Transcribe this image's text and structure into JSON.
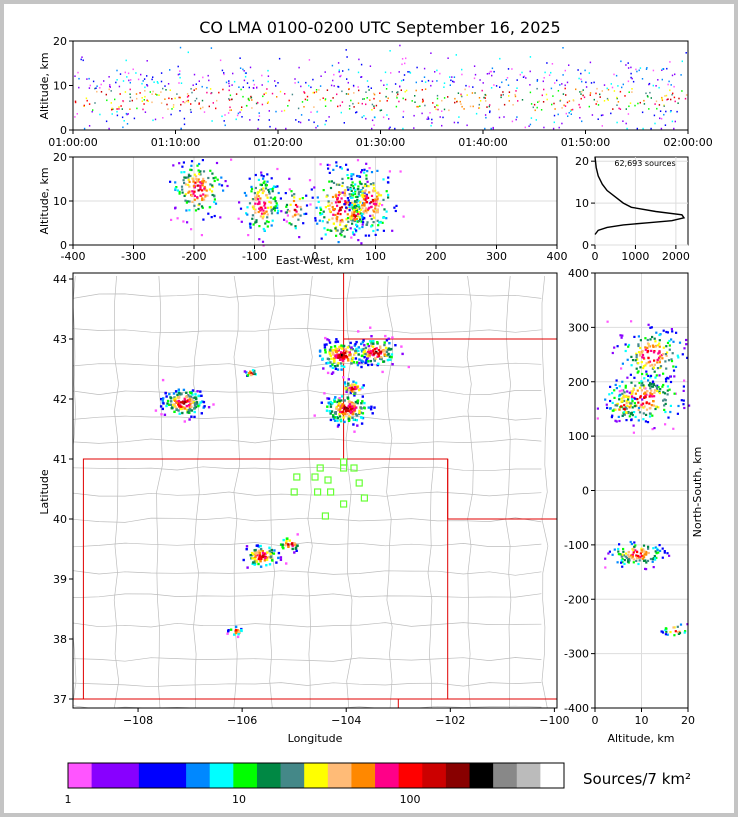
{
  "title": "CO LMA 0100-0200 UTC September 16, 2025",
  "colors": {
    "state_border": "#e00000",
    "county_border": "#bdbdbd",
    "station_marker": "#66ff33",
    "axis": "#000000",
    "grid": "#dddddd"
  },
  "chart_data": [
    {
      "name": "altitude-time",
      "type": "heatmap",
      "xlabel": "",
      "ylabel": "Altitude, km",
      "xlim": [
        "01:00:00",
        "02:00:00"
      ],
      "ylim": [
        0,
        20
      ],
      "xticks": [
        "01:00:00",
        "01:10:00",
        "01:20:00",
        "01:30:00",
        "01:40:00",
        "01:50:00",
        "02:00:00"
      ],
      "yticks": [
        0,
        10,
        20
      ]
    },
    {
      "name": "altitude-eastwest",
      "type": "heatmap",
      "xlabel": "East-West, km",
      "ylabel": "Altitude, km",
      "xlim": [
        -400,
        400
      ],
      "ylim": [
        0,
        20
      ],
      "xticks": [
        -400,
        -300,
        -200,
        -100,
        0,
        100,
        200,
        300,
        400
      ],
      "yticks": [
        0,
        10,
        20
      ],
      "clusters": [
        {
          "x": -195,
          "z": 13,
          "sx": 22,
          "sz": 3.5,
          "n": 170
        },
        {
          "x": -90,
          "z": 9.5,
          "sx": 16,
          "sz": 3.5,
          "n": 160
        },
        {
          "x": -35,
          "z": 8.5,
          "sx": 10,
          "sz": 3,
          "n": 40
        },
        {
          "x": 40,
          "z": 9,
          "sx": 22,
          "sz": 5,
          "n": 230
        },
        {
          "x": 90,
          "z": 10,
          "sx": 20,
          "sz": 4,
          "n": 190
        },
        {
          "x": 65,
          "z": 7,
          "sx": 8,
          "sz": 1.5,
          "n": 40
        }
      ]
    },
    {
      "name": "altitude-histogram",
      "type": "line",
      "annotation": "62,693 sources",
      "xlim": [
        0,
        2300
      ],
      "ylim": [
        0,
        21
      ],
      "xticks": [
        0,
        1000,
        2000
      ],
      "yticks": [
        0,
        10,
        20
      ],
      "x": [
        0,
        80,
        300,
        700,
        1300,
        1900,
        2200,
        2150,
        1500,
        900,
        700,
        500,
        300,
        180,
        80,
        30,
        0
      ],
      "y": [
        2.5,
        3.5,
        4.2,
        4.8,
        5.3,
        5.8,
        6.5,
        7.2,
        8.0,
        9.0,
        10.0,
        11.5,
        13.0,
        14.5,
        16.5,
        18.5,
        21.0
      ]
    },
    {
      "name": "plan-view-map",
      "type": "heatmap",
      "xlabel": "Longitude",
      "ylabel": "Latitude",
      "xlim": [
        -109.25,
        -99.95
      ],
      "ylim": [
        36.85,
        44.1
      ],
      "xticks": [
        -108,
        -106,
        -104,
        -102,
        -100
      ],
      "yticks": [
        37,
        38,
        39,
        40,
        41,
        42,
        43,
        44
      ],
      "clusters": [
        {
          "lon": -107.15,
          "lat": 41.95,
          "s": 0.18,
          "n": 150
        },
        {
          "lon": -104.1,
          "lat": 42.75,
          "s": 0.2,
          "n": 160
        },
        {
          "lon": -103.45,
          "lat": 42.8,
          "s": 0.18,
          "n": 120
        },
        {
          "lon": -104.0,
          "lat": 41.85,
          "s": 0.2,
          "n": 170
        },
        {
          "lon": -103.9,
          "lat": 42.2,
          "s": 0.1,
          "n": 40
        },
        {
          "lon": -105.65,
          "lat": 39.4,
          "s": 0.15,
          "n": 90
        },
        {
          "lon": -105.1,
          "lat": 39.6,
          "s": 0.1,
          "n": 30
        },
        {
          "lon": -106.15,
          "lat": 38.15,
          "s": 0.06,
          "n": 20
        },
        {
          "lon": -105.85,
          "lat": 42.45,
          "s": 0.05,
          "n": 15
        }
      ],
      "stations": [
        {
          "lon": -104.5,
          "lat": 40.85
        },
        {
          "lon": -104.05,
          "lat": 40.95
        },
        {
          "lon": -103.85,
          "lat": 40.85
        },
        {
          "lon": -104.95,
          "lat": 40.7
        },
        {
          "lon": -104.6,
          "lat": 40.7
        },
        {
          "lon": -104.35,
          "lat": 40.65
        },
        {
          "lon": -104.05,
          "lat": 40.85
        },
        {
          "lon": -103.75,
          "lat": 40.6
        },
        {
          "lon": -105.0,
          "lat": 40.45
        },
        {
          "lon": -104.55,
          "lat": 40.45
        },
        {
          "lon": -104.3,
          "lat": 40.45
        },
        {
          "lon": -103.65,
          "lat": 40.35
        },
        {
          "lon": -104.05,
          "lat": 40.25
        },
        {
          "lon": -104.4,
          "lat": 40.05
        }
      ]
    },
    {
      "name": "northsouth-altitude",
      "type": "heatmap",
      "xlabel": "Altitude, km",
      "ylabel": "North-South, km",
      "xlim": [
        0,
        20
      ],
      "ylim": [
        -400,
        400
      ],
      "xticks": [
        0,
        10,
        20
      ],
      "yticks": [
        -400,
        -300,
        -200,
        -100,
        0,
        100,
        200,
        300,
        400
      ],
      "clusters": [
        {
          "z": 12,
          "ns": 250,
          "sz": 3.5,
          "sns": 25,
          "n": 170
        },
        {
          "z": 10,
          "ns": 170,
          "sz": 4.5,
          "sns": 22,
          "n": 200
        },
        {
          "z": 6,
          "ns": 155,
          "sz": 1.8,
          "sns": 12,
          "n": 60
        },
        {
          "z": 9,
          "ns": -115,
          "sz": 3,
          "sns": 12,
          "n": 120
        },
        {
          "z": 17,
          "ns": -255,
          "sz": 1.5,
          "sns": 6,
          "n": 25
        }
      ]
    },
    {
      "name": "colorbar",
      "type": "bar",
      "label": "Sources/7 km²",
      "ticks": [
        "1",
        "10",
        "100"
      ],
      "colors": [
        "#ff55ff",
        "#8800ff",
        "#8800ff",
        "#0000ff",
        "#0000ff",
        "#0088ff",
        "#00ffff",
        "#00ff00",
        "#008844",
        "#448888",
        "#ffff00",
        "#ffbb77",
        "#ff8800",
        "#ff0088",
        "#ff0000",
        "#cc0000",
        "#880000",
        "#000000",
        "#888888",
        "#bbbbbb",
        "#ffffff"
      ]
    }
  ]
}
